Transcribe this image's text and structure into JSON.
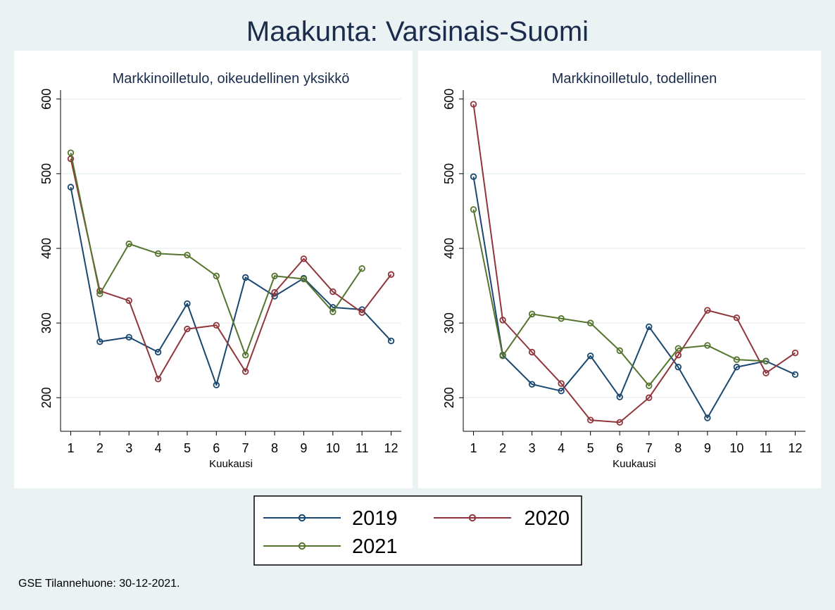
{
  "title": "Maakunta: Varsinais-Suomi",
  "footnote": "GSE Tilannehuone: 30-12-2021.",
  "colors": {
    "background": "#eaf2f3",
    "panel": "#ffffff",
    "grid": "#eaf2f3",
    "axis": "#000000",
    "title": "#1a2b4c",
    "subtitle": "#1a2b4c",
    "series_2019": "#1a476f",
    "series_2020": "#90353b",
    "series_2021": "#55752f"
  },
  "legend": {
    "position": "bottom-center",
    "items": [
      {
        "label": "2019",
        "color": "#1a476f"
      },
      {
        "label": "2020",
        "color": "#90353b"
      },
      {
        "label": "2021",
        "color": "#55752f"
      }
    ]
  },
  "chart_data": [
    {
      "type": "line",
      "title": "Markkinoilletulo, oikeudellinen yksikkö",
      "xlabel": "Kuukausi",
      "ylabel": "",
      "x": [
        1,
        2,
        3,
        4,
        5,
        6,
        7,
        8,
        9,
        10,
        11,
        12
      ],
      "x_ticks": [
        1,
        2,
        3,
        4,
        5,
        6,
        7,
        8,
        9,
        10,
        11,
        12
      ],
      "xlim": [
        0.65,
        12.35
      ],
      "y_ticks": [
        200,
        300,
        400,
        500,
        600
      ],
      "ylim": [
        155,
        612
      ],
      "grid": true,
      "series": [
        {
          "name": "2019",
          "color": "#1a476f",
          "values": [
            482,
            275,
            281,
            261,
            326,
            217,
            361,
            336,
            360,
            321,
            318,
            276
          ]
        },
        {
          "name": "2020",
          "color": "#90353b",
          "values": [
            520,
            343,
            330,
            225,
            292,
            297,
            235,
            341,
            386,
            342,
            314,
            365
          ]
        },
        {
          "name": "2021",
          "color": "#55752f",
          "values": [
            528,
            339,
            406,
            393,
            391,
            363,
            257,
            363,
            359,
            315,
            373,
            null
          ]
        }
      ]
    },
    {
      "type": "line",
      "title": "Markkinoilletulo, todellinen",
      "xlabel": "Kuukausi",
      "ylabel": "",
      "x": [
        1,
        2,
        3,
        4,
        5,
        6,
        7,
        8,
        9,
        10,
        11,
        12
      ],
      "x_ticks": [
        1,
        2,
        3,
        4,
        5,
        6,
        7,
        8,
        9,
        10,
        11,
        12
      ],
      "xlim": [
        0.65,
        12.35
      ],
      "y_ticks": [
        200,
        300,
        400,
        500,
        600
      ],
      "ylim": [
        155,
        612
      ],
      "grid": true,
      "series": [
        {
          "name": "2019",
          "color": "#1a476f",
          "values": [
            496,
            257,
            218,
            209,
            256,
            201,
            295,
            241,
            173,
            241,
            249,
            231
          ]
        },
        {
          "name": "2020",
          "color": "#90353b",
          "values": [
            593,
            304,
            261,
            219,
            170,
            167,
            200,
            257,
            317,
            307,
            233,
            260
          ]
        },
        {
          "name": "2021",
          "color": "#55752f",
          "values": [
            452,
            256,
            312,
            306,
            300,
            263,
            216,
            266,
            270,
            251,
            249,
            null
          ]
        }
      ]
    }
  ]
}
